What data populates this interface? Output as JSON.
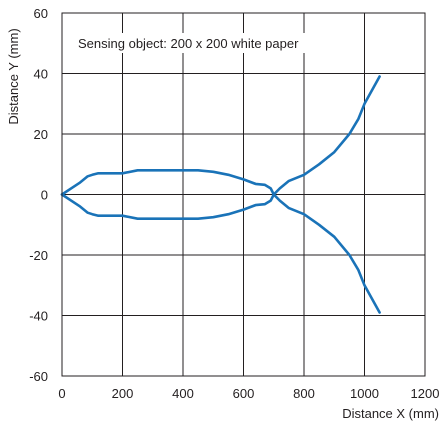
{
  "chart_data": {
    "type": "line",
    "title": "",
    "annotation": "Sensing object: 200 x 200 white paper",
    "xlabel": "Distance X (mm)",
    "ylabel": "Distance Y (mm)",
    "xlim": [
      0,
      1200
    ],
    "ylim": [
      -60,
      60
    ],
    "xticks": [
      0,
      200,
      400,
      600,
      800,
      1000,
      1200
    ],
    "yticks": [
      -60,
      -40,
      -20,
      0,
      20,
      40,
      60
    ],
    "xtick_labels": [
      "0",
      "200",
      "400",
      "600",
      "800",
      "1000",
      "1200"
    ],
    "ytick_labels": [
      "-60",
      "-40",
      "-20",
      "0",
      "20",
      "40",
      "60"
    ],
    "grid": true,
    "legend": "none",
    "color": "#1a73b8",
    "series": [
      {
        "x": [
          0,
          30,
          60,
          85,
          100,
          120,
          200,
          250,
          300,
          450,
          500,
          550,
          600,
          640,
          670,
          690,
          700,
          720,
          750,
          800,
          850,
          900,
          950,
          980,
          1000,
          1050
        ],
        "y": [
          0,
          2,
          4,
          6,
          6.5,
          7,
          7,
          8,
          8,
          8,
          7.5,
          6.5,
          5,
          3.5,
          3.2,
          2,
          0,
          -2,
          -4.5,
          -6.5,
          -10,
          -14,
          -20,
          -25,
          -30,
          -39
        ]
      },
      {
        "x": [
          0,
          30,
          60,
          85,
          100,
          120,
          200,
          250,
          300,
          450,
          500,
          550,
          600,
          640,
          670,
          690,
          700,
          720,
          750,
          800,
          850,
          900,
          950,
          980,
          1000,
          1050
        ],
        "y": [
          0,
          -2,
          -4,
          -6,
          -6.5,
          -7,
          -7,
          -8,
          -8,
          -8,
          -7.5,
          -6.5,
          -5,
          -3.5,
          -3.2,
          -2,
          0,
          2,
          4.5,
          6.5,
          10,
          14,
          20,
          25,
          30,
          39
        ]
      }
    ]
  }
}
